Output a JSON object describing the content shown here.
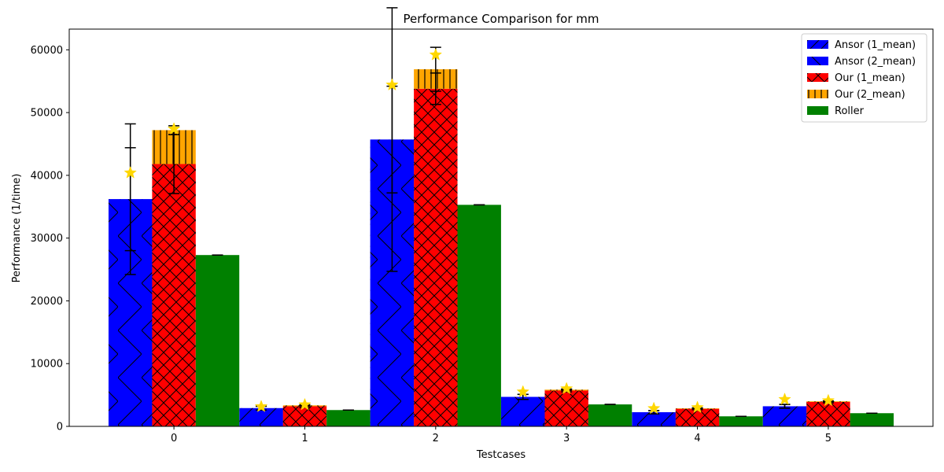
{
  "chart_data": {
    "type": "bar",
    "title": "Performance Comparison for mm",
    "xlabel": "Testcases",
    "ylabel": "Performance (1/time)",
    "categories": [
      "0",
      "1",
      "2",
      "3",
      "4",
      "5"
    ],
    "ylim": [
      0,
      63300
    ],
    "yticks": [
      0,
      10000,
      20000,
      30000,
      40000,
      50000,
      60000
    ],
    "ytick_labels": [
      "0",
      "10000",
      "20000",
      "30000",
      "40000",
      "50000",
      "60000"
    ],
    "legend_position": "top-right",
    "grid": false,
    "series": [
      {
        "name": "Ansor (1_mean)",
        "group": 0,
        "values": [
          36200,
          2900,
          45700,
          4700,
          2250,
          3200
        ],
        "errors": [
          8200,
          300,
          8500,
          400,
          250,
          300
        ],
        "color": "#0000ff",
        "hatch": "diagonal"
      },
      {
        "name": "Ansor (2_mean)",
        "group": 0,
        "values": [
          36200,
          2900,
          45700,
          4700,
          2250,
          3200
        ],
        "errors": [
          12000,
          300,
          21000,
          400,
          250,
          300
        ],
        "color": "#0000ff",
        "hatch": "chevron"
      },
      {
        "name": "Our (1_mean)",
        "group": 1,
        "values": [
          41800,
          3200,
          53800,
          5700,
          2800,
          3900
        ],
        "errors": [
          4700,
          200,
          2500,
          200,
          150,
          150
        ],
        "color": "#ff0000",
        "hatch": "crosshatch"
      },
      {
        "name": "Our (2_mean)",
        "group": 1,
        "base_on": "Our (1_mean)",
        "values": [
          5400,
          150,
          3100,
          150,
          80,
          100
        ],
        "errors": [
          700,
          100,
          3500,
          100,
          50,
          50
        ],
        "color": "#ffa500",
        "hatch": "vertical"
      },
      {
        "name": "Roller",
        "group": 2,
        "values": [
          27300,
          2600,
          35300,
          3500,
          1600,
          2100
        ],
        "errors": [
          0,
          0,
          0,
          0,
          0,
          0
        ],
        "color": "#008000",
        "hatch": "none"
      }
    ],
    "markers": {
      "symbol": "star",
      "color": "#ffd700",
      "points": [
        {
          "x": 0,
          "group": 0,
          "y": 40400
        },
        {
          "x": 0,
          "group": 1,
          "y": 47400
        },
        {
          "x": 1,
          "group": 0,
          "y": 3150
        },
        {
          "x": 1,
          "group": 1,
          "y": 3450
        },
        {
          "x": 2,
          "group": 0,
          "y": 54400
        },
        {
          "x": 2,
          "group": 1,
          "y": 59200
        },
        {
          "x": 3,
          "group": 0,
          "y": 5500
        },
        {
          "x": 3,
          "group": 1,
          "y": 6000
        },
        {
          "x": 4,
          "group": 0,
          "y": 2850
        },
        {
          "x": 4,
          "group": 1,
          "y": 3000
        },
        {
          "x": 5,
          "group": 0,
          "y": 4300
        },
        {
          "x": 5,
          "group": 1,
          "y": 4100
        }
      ]
    }
  }
}
